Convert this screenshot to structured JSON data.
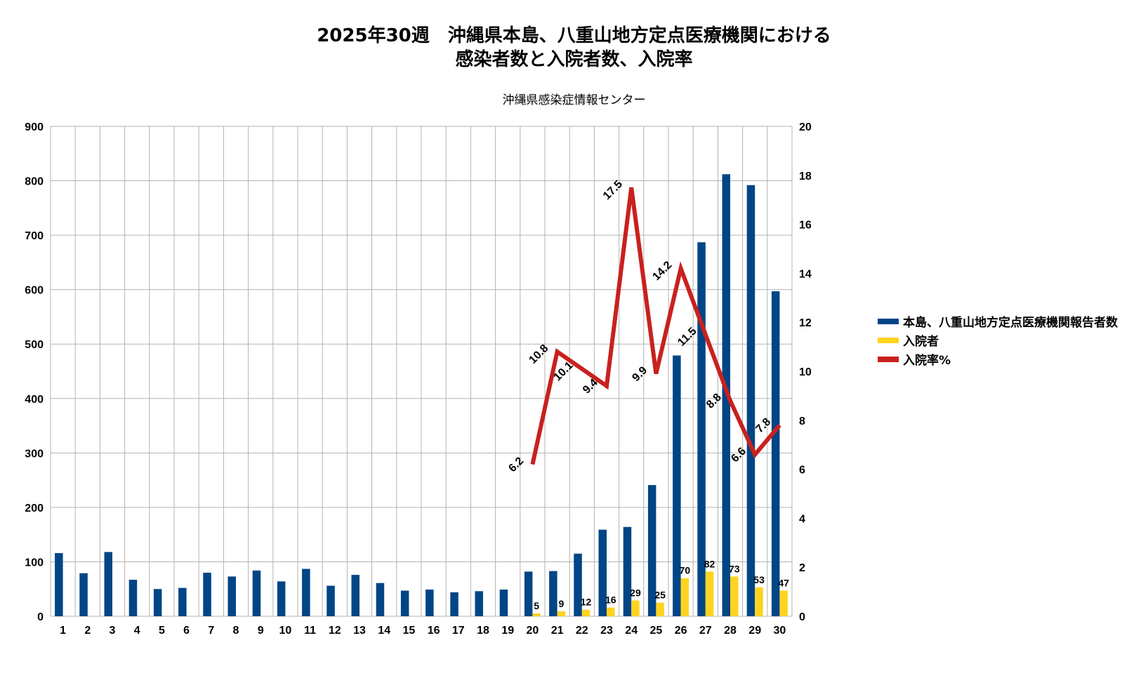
{
  "chart_data": {
    "type": "bar",
    "title_line1": "2025年30週　沖縄県本島、八重山地方定点医療機関における",
    "title_line2": "感染者数と入院者数、入院率",
    "subtitle": "沖縄県感染症情報センター",
    "categories": [
      "1",
      "2",
      "3",
      "4",
      "5",
      "6",
      "7",
      "8",
      "9",
      "10",
      "11",
      "12",
      "13",
      "14",
      "15",
      "16",
      "17",
      "18",
      "19",
      "20",
      "21",
      "22",
      "23",
      "24",
      "25",
      "26",
      "27",
      "28",
      "29",
      "30"
    ],
    "ylim": [
      0,
      900
    ],
    "y_ticks": [
      0,
      100,
      200,
      300,
      400,
      500,
      600,
      700,
      800,
      900
    ],
    "y2lim": [
      0,
      20
    ],
    "y2_ticks": [
      0,
      2,
      4,
      6,
      8,
      10,
      12,
      14,
      16,
      18,
      20
    ],
    "grid": true,
    "legend_position": "right",
    "series": [
      {
        "name": "本島、八重山地方定点医療機関報告者数",
        "type": "bar",
        "axis": "left",
        "color": "#004586",
        "values": [
          116,
          79,
          118,
          67,
          50,
          52,
          80,
          73,
          84,
          64,
          87,
          56,
          76,
          61,
          47,
          49,
          44,
          46,
          49,
          82,
          83,
          115,
          159,
          164,
          241,
          479,
          687,
          812,
          792,
          597
        ]
      },
      {
        "name": "入院者",
        "type": "bar",
        "axis": "left",
        "color": "#ffd320",
        "values": [
          null,
          null,
          null,
          null,
          null,
          null,
          null,
          null,
          null,
          null,
          null,
          null,
          null,
          null,
          null,
          null,
          null,
          null,
          null,
          5,
          9,
          12,
          16,
          29,
          25,
          70,
          82,
          73,
          53,
          47
        ],
        "labels": [
          "",
          "",
          "",
          "",
          "",
          "",
          "",
          "",
          "",
          "",
          "",
          "",
          "",
          "",
          "",
          "",
          "",
          "",
          "",
          "5",
          "9",
          "12",
          "16",
          "29",
          "25",
          "70",
          "82",
          "73",
          "53",
          "47"
        ]
      },
      {
        "name": "入院率%",
        "type": "line",
        "axis": "right",
        "color": "#c9211e",
        "values": [
          null,
          null,
          null,
          null,
          null,
          null,
          null,
          null,
          null,
          null,
          null,
          null,
          null,
          null,
          null,
          null,
          null,
          null,
          null,
          6.2,
          10.8,
          10.1,
          9.4,
          17.5,
          9.9,
          14.2,
          11.5,
          8.8,
          6.6,
          7.8
        ],
        "labels": [
          "",
          "",
          "",
          "",
          "",
          "",
          "",
          "",
          "",
          "",
          "",
          "",
          "",
          "",
          "",
          "",
          "",
          "",
          "",
          "6.2",
          "10.8",
          "10.1",
          "9.4",
          "17.5",
          "9.9",
          "14.2",
          "11.5",
          "8.8",
          "6.6",
          "7.8"
        ]
      }
    ]
  }
}
